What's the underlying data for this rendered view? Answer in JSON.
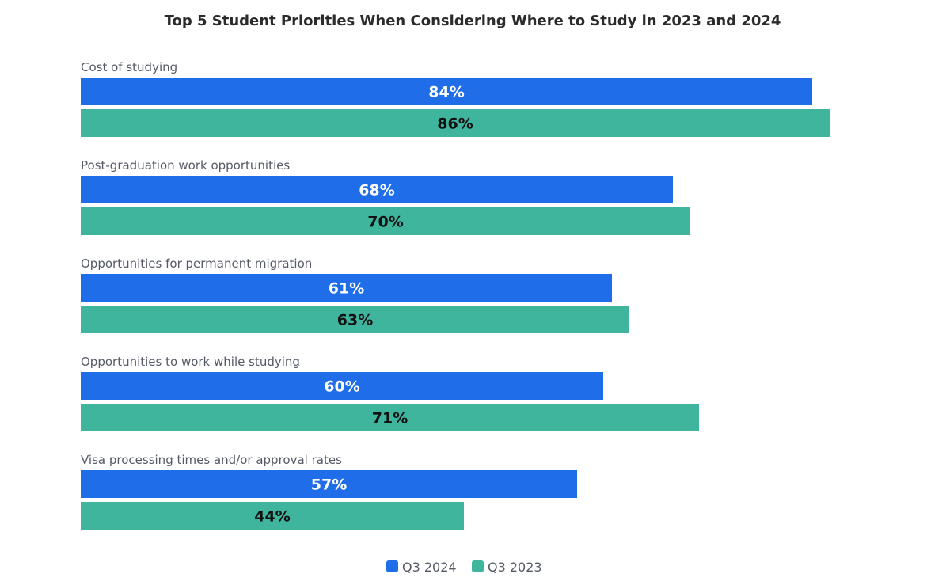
{
  "chart_data": {
    "type": "bar",
    "orientation": "horizontal",
    "title": "Top 5 Student Priorities When Considering Where to Study in 2023 and 2024",
    "categories": [
      "Cost of studying",
      "Post-graduation work opportunities",
      "Opportunities for permanent migration",
      "Opportunities to work while studying",
      "Visa processing times and/or approval rates"
    ],
    "series": [
      {
        "name": "Q3 2024",
        "color": "#1f6de8",
        "label_color": "#ffffff",
        "values": [
          84,
          68,
          61,
          60,
          57
        ],
        "labels": [
          "84%",
          "68%",
          "61%",
          "60%",
          "57%"
        ]
      },
      {
        "name": "Q3 2023",
        "color": "#40b59d",
        "label_color": "#111111",
        "values": [
          86,
          70,
          63,
          71,
          44
        ],
        "labels": [
          "86%",
          "70%",
          "63%",
          "71%",
          "44%"
        ]
      }
    ],
    "xlim": [
      0,
      100
    ],
    "grid": false,
    "legend_position": "bottom-center"
  }
}
